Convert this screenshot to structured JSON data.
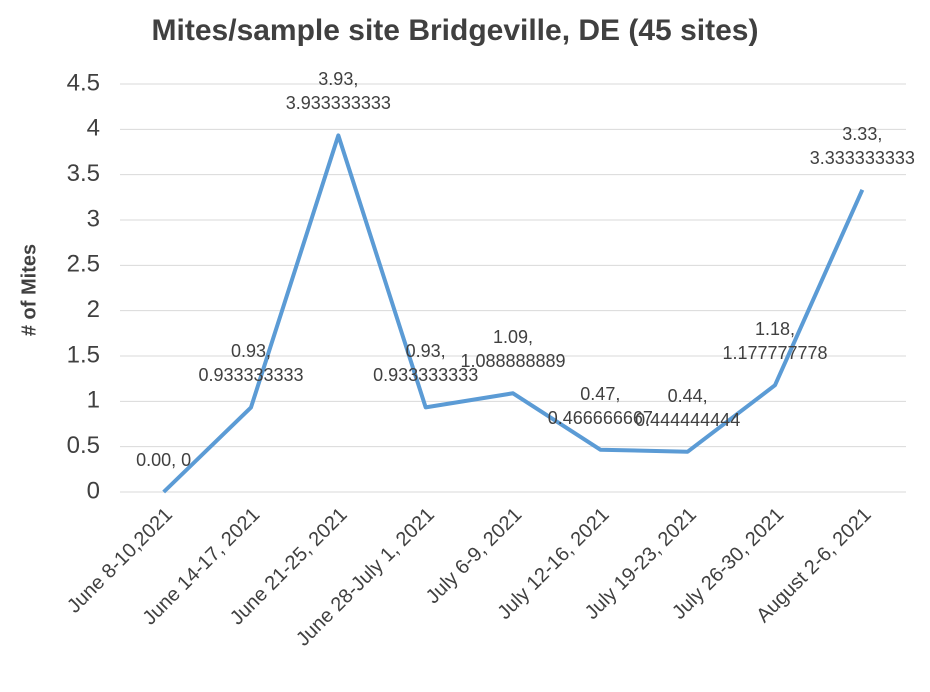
{
  "chart_data": {
    "type": "line",
    "title": "Mites/sample site Bridgeville, DE (45 sites)",
    "y_label": "# of Mites",
    "categories": [
      "June 8-10,2021",
      "June 14-17, 2021",
      "June 21-25, 2021",
      "June 28-July 1, 2021",
      "July 6-9, 2021",
      "July 12-16, 2021",
      "July 19-23, 2021",
      "July 26-30, 2021",
      "August 2-6, 2021"
    ],
    "series": [
      {
        "name": "# of Mites",
        "color": "#5b9bd5",
        "values": [
          0,
          0.933333333,
          3.933333333,
          0.933333333,
          1.088888889,
          0.466666667,
          0.444444444,
          1.177777778,
          3.333333333
        ],
        "value_labels": [
          "0.00, 0",
          "0.93, 0.933333333",
          "3.93, 3.933333333",
          "0.93, 0.933333333",
          "1.09, 1.088888889",
          "0.47, 0.466666667",
          "0.44, 0.444444444",
          "1.18, 1.177777778",
          "3.33, 3.333333333"
        ]
      }
    ],
    "ylim": [
      0,
      4.5
    ],
    "yticks": [
      0,
      0.5,
      1,
      1.5,
      2,
      2.5,
      3,
      3.5,
      4,
      4.5
    ],
    "grid": true
  }
}
